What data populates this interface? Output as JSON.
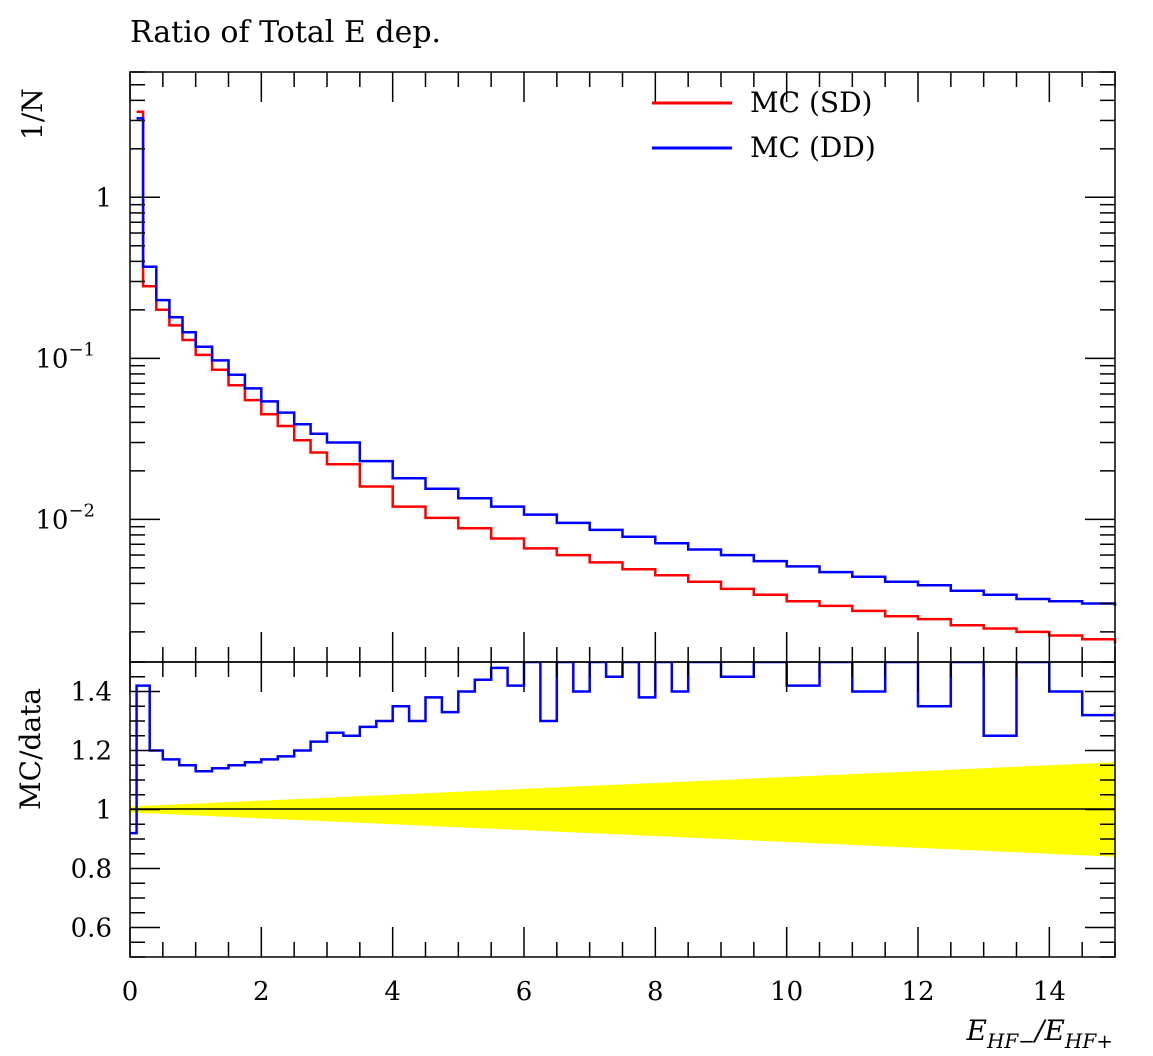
{
  "chart_data": [
    {
      "type": "line",
      "panel": "main",
      "title": "Ratio of Total E dep.",
      "xlabel": "",
      "ylabel": "1/N",
      "yscale": "log",
      "xlim": [
        0,
        15
      ],
      "ylim": [
        0.0013,
        6
      ],
      "grid": false,
      "legend_placement": "top-right",
      "y_tick_labels": [
        {
          "value": 1,
          "label": "1"
        },
        {
          "value": 0.1,
          "label": "10",
          "exponent": "−1"
        },
        {
          "value": 0.01,
          "label": "10",
          "exponent": "−2"
        }
      ],
      "series": [
        {
          "name": "MC (SD)",
          "color": "#ff0000",
          "style": "step",
          "points": [
            [
              0.1,
              3.4
            ],
            [
              0.2,
              0.28
            ],
            [
              0.4,
              0.2
            ],
            [
              0.6,
              0.16
            ],
            [
              0.8,
              0.13
            ],
            [
              1.0,
              0.105
            ],
            [
              1.25,
              0.085
            ],
            [
              1.5,
              0.068
            ],
            [
              1.75,
              0.055
            ],
            [
              2.0,
              0.045
            ],
            [
              2.25,
              0.038
            ],
            [
              2.5,
              0.031
            ],
            [
              2.75,
              0.026
            ],
            [
              3.0,
              0.022
            ],
            [
              3.5,
              0.016
            ],
            [
              4.0,
              0.012
            ],
            [
              4.5,
              0.0102
            ],
            [
              5.0,
              0.0088
            ],
            [
              5.5,
              0.0076
            ],
            [
              6.0,
              0.0066
            ],
            [
              6.5,
              0.006
            ],
            [
              7.0,
              0.0054
            ],
            [
              7.5,
              0.0049
            ],
            [
              8.0,
              0.0045
            ],
            [
              8.5,
              0.0041
            ],
            [
              9.0,
              0.0037
            ],
            [
              9.5,
              0.0034
            ],
            [
              10.0,
              0.0031
            ],
            [
              10.5,
              0.0029
            ],
            [
              11.0,
              0.0027
            ],
            [
              11.5,
              0.0025
            ],
            [
              12.0,
              0.0024
            ],
            [
              12.5,
              0.0022
            ],
            [
              13.0,
              0.0021
            ],
            [
              13.5,
              0.002
            ],
            [
              14.0,
              0.0019
            ],
            [
              14.5,
              0.0018
            ],
            [
              15.0,
              0.0017
            ]
          ]
        },
        {
          "name": "MC (DD)",
          "color": "#0000ff",
          "style": "step",
          "points": [
            [
              0.1,
              3.1
            ],
            [
              0.2,
              0.37
            ],
            [
              0.4,
              0.23
            ],
            [
              0.6,
              0.18
            ],
            [
              0.8,
              0.145
            ],
            [
              1.0,
              0.118
            ],
            [
              1.25,
              0.097
            ],
            [
              1.5,
              0.079
            ],
            [
              1.75,
              0.065
            ],
            [
              2.0,
              0.054
            ],
            [
              2.25,
              0.046
            ],
            [
              2.5,
              0.039
            ],
            [
              2.75,
              0.034
            ],
            [
              3.0,
              0.03
            ],
            [
              3.5,
              0.023
            ],
            [
              4.0,
              0.018
            ],
            [
              4.5,
              0.0155
            ],
            [
              5.0,
              0.0135
            ],
            [
              5.5,
              0.012
            ],
            [
              6.0,
              0.0107
            ],
            [
              6.5,
              0.0095
            ],
            [
              7.0,
              0.0086
            ],
            [
              7.5,
              0.0078
            ],
            [
              8.0,
              0.0071
            ],
            [
              8.5,
              0.0065
            ],
            [
              9.0,
              0.006
            ],
            [
              9.5,
              0.0055
            ],
            [
              10.0,
              0.0051
            ],
            [
              10.5,
              0.0047
            ],
            [
              11.0,
              0.0044
            ],
            [
              11.5,
              0.0041
            ],
            [
              12.0,
              0.0039
            ],
            [
              12.5,
              0.0036
            ],
            [
              13.0,
              0.0034
            ],
            [
              13.5,
              0.0032
            ],
            [
              14.0,
              0.0031
            ],
            [
              14.5,
              0.003
            ],
            [
              15.0,
              0.0029
            ]
          ]
        }
      ]
    },
    {
      "type": "line",
      "panel": "ratio",
      "xlabel": "E_{HF−}/E_{HF+}",
      "ylabel": "MC/data",
      "yscale": "linear",
      "xlim": [
        0,
        15
      ],
      "ylim": [
        0.5,
        1.5
      ],
      "grid": false,
      "x_tick_labels": [
        "0",
        "2",
        "4",
        "6",
        "8",
        "10",
        "12",
        "14"
      ],
      "y_tick_labels": [
        "0.6",
        "0.8",
        "1",
        "1.2",
        "1.4"
      ],
      "reference_line": 1,
      "band": {
        "color": "#ffff00",
        "x": [
          0,
          1,
          2,
          3,
          4,
          5,
          6,
          7,
          8,
          9,
          10,
          11,
          12,
          13,
          14,
          15
        ],
        "half_width": [
          0.01,
          0.02,
          0.03,
          0.04,
          0.05,
          0.06,
          0.07,
          0.08,
          0.09,
          0.1,
          0.11,
          0.12,
          0.13,
          0.14,
          0.15,
          0.16
        ]
      },
      "series": [
        {
          "name": "MC (DD)",
          "color": "#0000ff",
          "style": "step",
          "points": [
            [
              0.0,
              0.92
            ],
            [
              0.1,
              1.42
            ],
            [
              0.3,
              1.2
            ],
            [
              0.5,
              1.17
            ],
            [
              0.75,
              1.15
            ],
            [
              1.0,
              1.13
            ],
            [
              1.25,
              1.14
            ],
            [
              1.5,
              1.15
            ],
            [
              1.75,
              1.16
            ],
            [
              2.0,
              1.17
            ],
            [
              2.25,
              1.18
            ],
            [
              2.5,
              1.2
            ],
            [
              2.75,
              1.23
            ],
            [
              3.0,
              1.26
            ],
            [
              3.25,
              1.25
            ],
            [
              3.5,
              1.28
            ],
            [
              3.75,
              1.3
            ],
            [
              4.0,
              1.35
            ],
            [
              4.25,
              1.3
            ],
            [
              4.5,
              1.38
            ],
            [
              4.75,
              1.33
            ],
            [
              5.0,
              1.4
            ],
            [
              5.25,
              1.44
            ],
            [
              5.5,
              1.48
            ],
            [
              5.75,
              1.42
            ],
            [
              6.0,
              1.5
            ],
            [
              6.25,
              1.3
            ],
            [
              6.5,
              1.5
            ],
            [
              6.75,
              1.4
            ],
            [
              7.0,
              1.5
            ],
            [
              7.25,
              1.45
            ],
            [
              7.5,
              1.5
            ],
            [
              7.75,
              1.38
            ],
            [
              8.0,
              1.5
            ],
            [
              8.25,
              1.4
            ],
            [
              8.5,
              1.5
            ],
            [
              9.0,
              1.45
            ],
            [
              9.5,
              1.5
            ],
            [
              10.0,
              1.42
            ],
            [
              10.5,
              1.5
            ],
            [
              11.0,
              1.4
            ],
            [
              11.5,
              1.5
            ],
            [
              12.0,
              1.35
            ],
            [
              12.5,
              1.5
            ],
            [
              13.0,
              1.25
            ],
            [
              13.5,
              1.5
            ],
            [
              14.0,
              1.4
            ],
            [
              14.5,
              1.32
            ],
            [
              15.0,
              1.33
            ]
          ]
        }
      ]
    }
  ],
  "legend": {
    "items": [
      {
        "label": "MC (SD)",
        "color": "#ff0000"
      },
      {
        "label": "MC (DD)",
        "color": "#0000ff"
      }
    ]
  }
}
